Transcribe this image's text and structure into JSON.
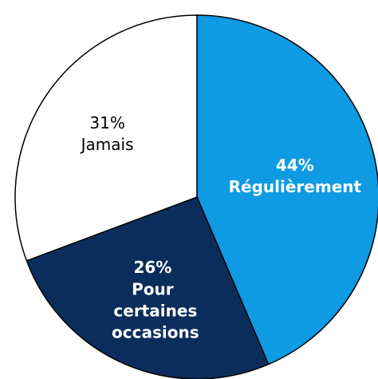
{
  "chart_data": {
    "type": "pie",
    "categories": [
      "Régulièrement",
      "Pour certaines occasions",
      "Jamais"
    ],
    "values": [
      44,
      26,
      31
    ],
    "value_labels": [
      "44%",
      "26%",
      "31%"
    ],
    "colors": [
      "#0f9be3",
      "#0b2d5b",
      "#ffffff"
    ],
    "label_colors": [
      "#ffffff",
      "#ffffff",
      "#000000"
    ],
    "label_bold": [
      true,
      true,
      false
    ]
  }
}
